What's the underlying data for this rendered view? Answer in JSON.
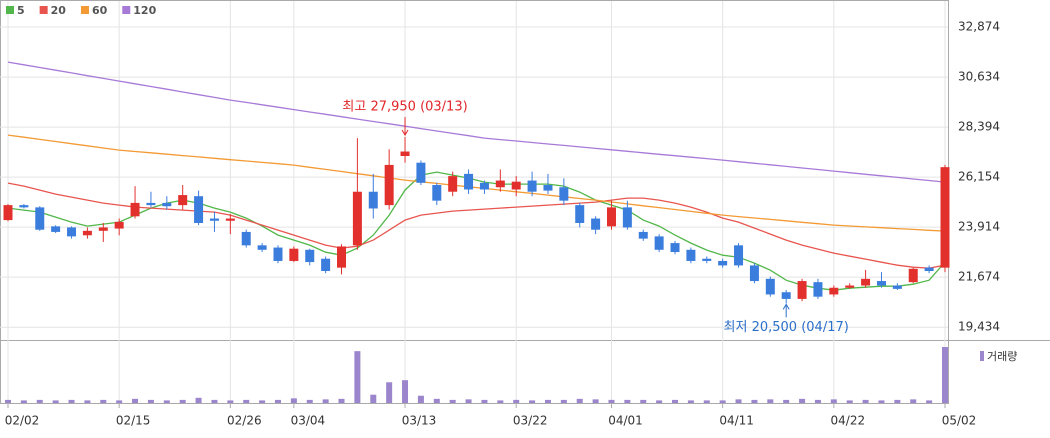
{
  "chart_data": {
    "type": "candlestick",
    "categories": [
      "02/02",
      null,
      null,
      null,
      null,
      null,
      null,
      "02/15",
      null,
      null,
      null,
      null,
      null,
      null,
      "02/26",
      null,
      null,
      null,
      "03/04",
      null,
      null,
      null,
      null,
      null,
      null,
      "03/13",
      null,
      null,
      null,
      null,
      null,
      null,
      "03/22",
      null,
      null,
      null,
      null,
      null,
      "04/01",
      null,
      null,
      null,
      null,
      null,
      null,
      "04/11",
      null,
      null,
      null,
      null,
      null,
      null,
      "04/22",
      null,
      null,
      null,
      null,
      null,
      null,
      "05/02"
    ],
    "open": [
      24230,
      24900,
      24800,
      23950,
      23900,
      23550,
      23750,
      23850,
      24400,
      25000,
      25000,
      24900,
      25300,
      24300,
      24200,
      23700,
      23100,
      23000,
      22400,
      22900,
      22500,
      22100,
      23100,
      25500,
      24900,
      27100,
      26800,
      25800,
      25500,
      26300,
      25900,
      25700,
      25600,
      26000,
      25800,
      25700,
      24900,
      24300,
      23950,
      24800,
      23700,
      23500,
      23200,
      22900,
      22500,
      22400,
      23100,
      22200,
      21600,
      21000,
      20700,
      21450,
      20900,
      21200,
      21300,
      21500,
      21300,
      21450,
      22100,
      22100
    ],
    "high": [
      24950,
      24950,
      24850,
      24000,
      23950,
      23900,
      24100,
      24300,
      25750,
      25500,
      25300,
      25800,
      25550,
      24600,
      24500,
      23800,
      23200,
      23100,
      23050,
      22950,
      22600,
      23150,
      27900,
      26300,
      27400,
      27950,
      26900,
      25900,
      26400,
      26500,
      26000,
      26500,
      26200,
      26400,
      26300,
      26100,
      25000,
      24400,
      25100,
      25100,
      23800,
      23600,
      23300,
      23000,
      22600,
      22500,
      23200,
      22300,
      21700,
      21100,
      21600,
      21600,
      21300,
      21400,
      22000,
      21900,
      21400,
      22100,
      22200,
      26700
    ],
    "low": [
      24180,
      24750,
      23750,
      23650,
      23400,
      23400,
      23250,
      23550,
      24300,
      24800,
      24700,
      24700,
      24000,
      23700,
      23600,
      23000,
      22800,
      22300,
      22350,
      22200,
      21850,
      21800,
      22900,
      24300,
      24700,
      26800,
      25800,
      24900,
      25300,
      25400,
      25400,
      25500,
      25300,
      25300,
      25400,
      24900,
      23900,
      23600,
      23800,
      23800,
      23300,
      22800,
      22700,
      22300,
      22300,
      22100,
      22100,
      21400,
      20800,
      20500,
      20600,
      20700,
      20800,
      21150,
      21200,
      21200,
      21100,
      21400,
      21850,
      21900
    ],
    "close": [
      24900,
      24800,
      23800,
      23700,
      23500,
      23750,
      23900,
      24150,
      25000,
      24900,
      24850,
      25350,
      24100,
      24200,
      24300,
      23100,
      22900,
      22400,
      22950,
      22350,
      21950,
      23050,
      25500,
      24750,
      26700,
      27300,
      25900,
      25100,
      26200,
      25600,
      25600,
      26000,
      25950,
      25500,
      25550,
      25100,
      24100,
      23800,
      24800,
      23900,
      23400,
      22900,
      22800,
      22400,
      22400,
      22200,
      22200,
      21500,
      20900,
      20700,
      21500,
      20800,
      21200,
      21300,
      21600,
      21300,
      21150,
      22050,
      21950,
      26600
    ],
    "up_color": "#e2312d",
    "down_color": "#3b7ddd",
    "volume": [
      300,
      250,
      300,
      250,
      300,
      250,
      300,
      250,
      400,
      300,
      250,
      300,
      500,
      300,
      250,
      300,
      250,
      300,
      450,
      300,
      350,
      400,
      5000,
      800,
      2000,
      2200,
      700,
      400,
      300,
      350,
      300,
      250,
      300,
      250,
      300,
      300,
      400,
      350,
      300,
      300,
      300,
      250,
      300,
      250,
      250,
      250,
      350,
      300,
      350,
      300,
      400,
      300,
      350,
      250,
      300,
      250,
      300,
      350,
      250,
      5400
    ],
    "volume_label": "거래량",
    "volume_color": "#9b85cc",
    "ma": [
      {
        "name": "5",
        "color": "#52b74a",
        "values": [
          24766,
          24676,
          24586,
          24362,
          24138,
          23959,
          24049,
          24138,
          24452,
          24766,
          24990,
          25124,
          24990,
          24766,
          24586,
          24318,
          23959,
          23556,
          23332,
          23108,
          22794,
          22660,
          22974,
          23556,
          24452,
          25572,
          26244,
          26378,
          26244,
          26110,
          25930,
          25841,
          25841,
          25841,
          25841,
          25751,
          25482,
          25124,
          24900,
          24676,
          24228,
          23959,
          23556,
          23198,
          22884,
          22660,
          22570,
          22302,
          21988,
          21540,
          21316,
          21182,
          21092,
          21182,
          21226,
          21271,
          21271,
          21361,
          21540,
          22346
        ]
      },
      {
        "name": "20",
        "color": "#e8554f",
        "values": [
          25886,
          25751,
          25572,
          25393,
          25258,
          25124,
          24990,
          24900,
          24810,
          24766,
          24721,
          24676,
          24631,
          24586,
          24452,
          24228,
          24004,
          23780,
          23556,
          23332,
          23108,
          22974,
          23063,
          23332,
          23780,
          24228,
          24452,
          24542,
          24631,
          24676,
          24721,
          24766,
          24810,
          24855,
          24900,
          24945,
          24990,
          25034,
          25124,
          25214,
          25214,
          25124,
          24990,
          24810,
          24586,
          24318,
          24138,
          23870,
          23601,
          23332,
          23108,
          22929,
          22750,
          22615,
          22481,
          22346,
          22212,
          22122,
          22078,
          22212
        ]
      },
      {
        "name": "60",
        "color": "#f39a35",
        "values": [
          28036,
          27940,
          27844,
          27748,
          27652,
          27556,
          27460,
          27364,
          27303,
          27242,
          27181,
          27120,
          27059,
          26997,
          26936,
          26875,
          26814,
          26753,
          26692,
          26596,
          26500,
          26404,
          26308,
          26212,
          26116,
          26020,
          25945,
          25871,
          25796,
          25721,
          25647,
          25572,
          25497,
          25423,
          25348,
          25273,
          25199,
          25124,
          25040,
          24956,
          24872,
          24788,
          24704,
          24620,
          24536,
          24452,
          24388,
          24324,
          24260,
          24196,
          24132,
          24068,
          24004,
          23966,
          23927,
          23889,
          23850,
          23812,
          23774,
          23735
        ]
      },
      {
        "name": "120",
        "color": "#a77ad8",
        "values": [
          31306,
          31184,
          31063,
          30941,
          30819,
          30698,
          30576,
          30455,
          30333,
          30212,
          30090,
          29968,
          29847,
          29725,
          29604,
          29498,
          29391,
          29285,
          29178,
          29072,
          28966,
          28859,
          28753,
          28646,
          28540,
          28433,
          28327,
          28221,
          28114,
          28008,
          27901,
          27835,
          27770,
          27704,
          27638,
          27573,
          27507,
          27441,
          27376,
          27310,
          27244,
          27178,
          27113,
          27047,
          26982,
          26916,
          26846,
          26775,
          26705,
          26634,
          26564,
          26494,
          26423,
          26353,
          26282,
          26212,
          26142,
          26071,
          26001,
          25930
        ]
      }
    ],
    "high_label": "최고 27,950 (03/13)",
    "low_label": "최저 20,500 (04/17)",
    "ylim": [
      18950,
      33190
    ],
    "yticks": [
      {
        "value": 19434,
        "label": "19,434"
      },
      {
        "value": 21674,
        "label": "21,674"
      },
      {
        "value": 23914,
        "label": "23,914"
      },
      {
        "value": 26154,
        "label": "26,154"
      },
      {
        "value": 28394,
        "label": "28,394"
      },
      {
        "value": 30634,
        "label": "30,634"
      },
      {
        "value": 32874,
        "label": "32,874"
      }
    ],
    "grid": true
  }
}
